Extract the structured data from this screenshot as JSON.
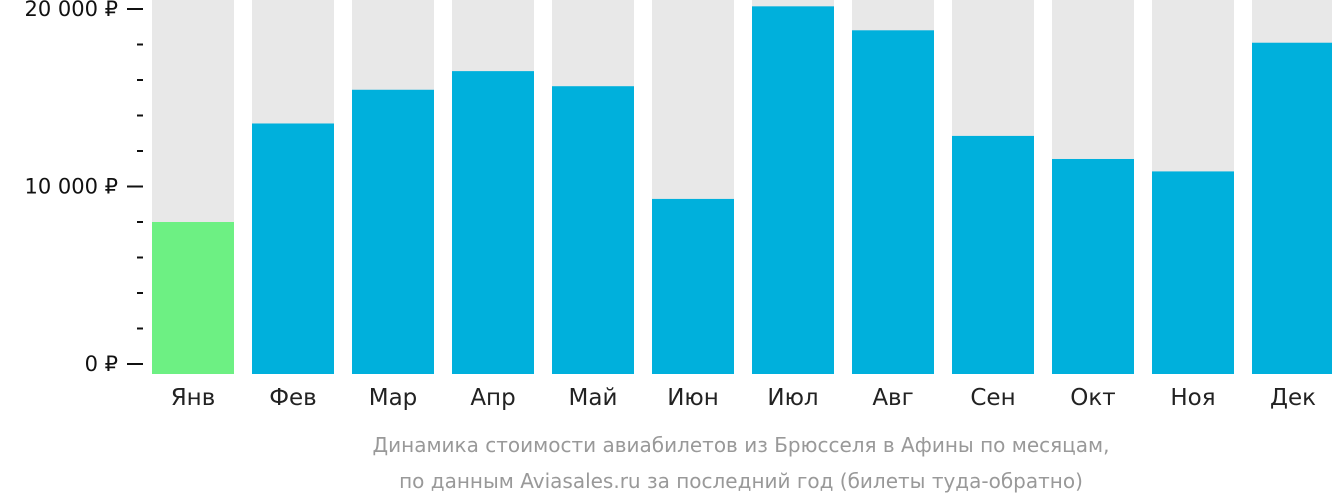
{
  "chart_data": {
    "type": "bar",
    "categories": [
      "Янв",
      "Фев",
      "Мар",
      "Апр",
      "Май",
      "Июн",
      "Июл",
      "Авг",
      "Сен",
      "Окт",
      "Ноя",
      "Дек"
    ],
    "values": [
      8000,
      13550,
      15450,
      16500,
      15650,
      9300,
      20150,
      18800,
      12850,
      11550,
      10850,
      18100
    ],
    "ylim": [
      0,
      20500
    ],
    "yticks": [
      {
        "value": 0,
        "label": "0 ₽"
      },
      {
        "value": 10000,
        "label": "10 000 ₽"
      },
      {
        "value": 20000,
        "label": "20 000 ₽"
      }
    ],
    "minor_tick_step": 2000,
    "highlight_index": 0,
    "colors": {
      "bar": "#00b0dc",
      "highlight": "#6df083",
      "background_column": "#e8e8e8",
      "axis": "#111111"
    },
    "caption": [
      "Динамика стоимости авиабилетов из Брюсселя в Афины по месяцам,",
      "по данным Aviasales.ru за последний год (билеты туда-обратно)"
    ]
  }
}
